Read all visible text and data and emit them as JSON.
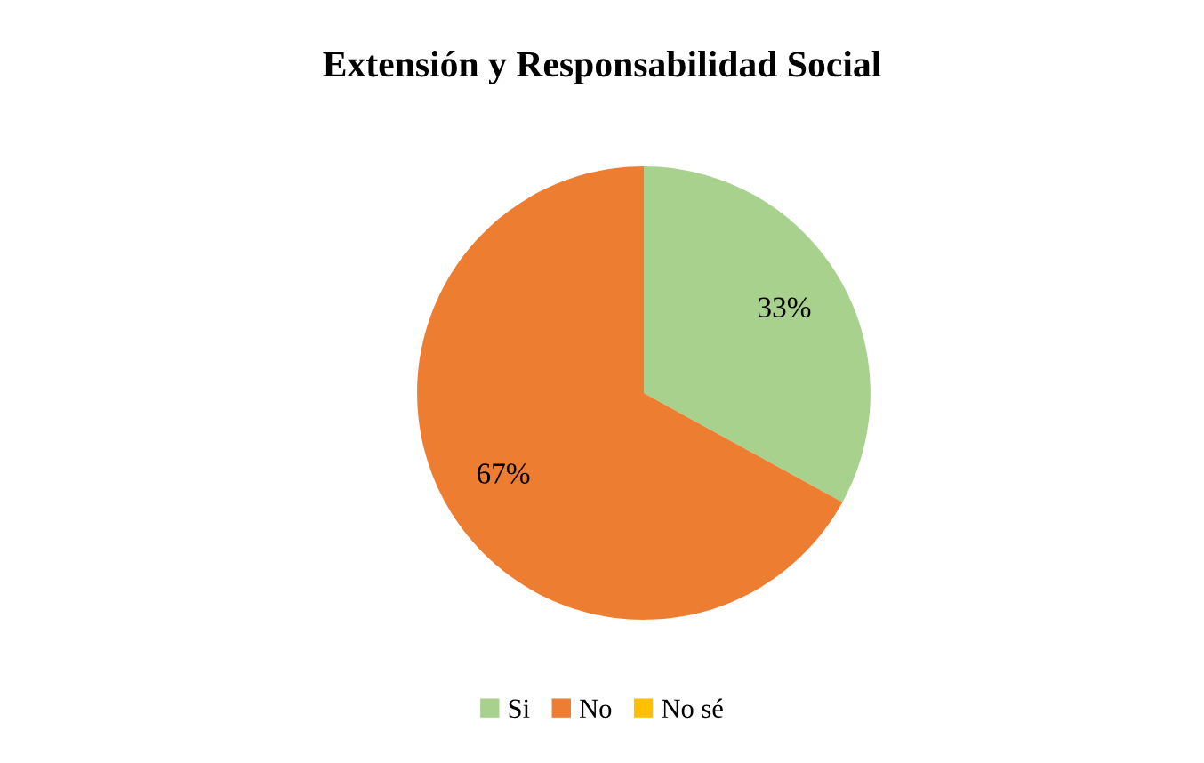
{
  "chart_data": {
    "type": "pie",
    "title": "Extensión y Responsabilidad Social",
    "categories": [
      "Si",
      "No",
      "No sé"
    ],
    "values": [
      33,
      67,
      0
    ],
    "colors": [
      "#a9d18e",
      "#ed7d31",
      "#ffc000"
    ],
    "value_labels": [
      "33%",
      "67%",
      null
    ],
    "legend": "bottom"
  }
}
